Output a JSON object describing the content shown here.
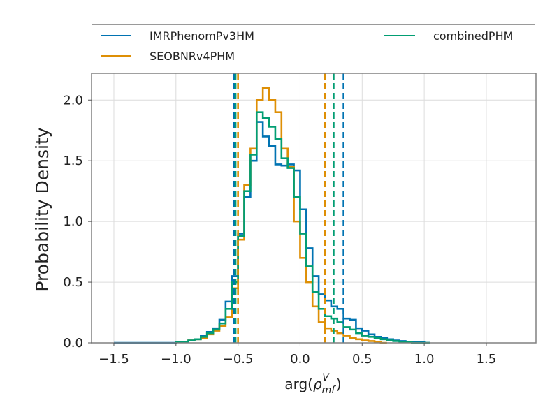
{
  "chart_data": {
    "type": "histogram",
    "xlabel": "arg(ρ_mf^V)",
    "ylabel": "Probability Density",
    "xlim": [
      -1.68,
      1.9
    ],
    "ylim": [
      0,
      2.22
    ],
    "xticks": [
      -1.5,
      -1.0,
      -0.5,
      0.0,
      0.5,
      1.0,
      1.5
    ],
    "xtick_labels": [
      "−1.5",
      "−1.0",
      "−0.5",
      "0.0",
      "0.5",
      "1.0",
      "1.5"
    ],
    "yticks": [
      0.0,
      0.5,
      1.0,
      1.5,
      2.0
    ],
    "ytick_labels": [
      "0.0",
      "0.5",
      "1.0",
      "1.5",
      "2.0"
    ],
    "grid": true,
    "legend_location": "above",
    "legend_columns": 2,
    "bin_width": 0.05,
    "series": [
      {
        "name": "IMRPhenomPv3HM",
        "color": "#0173b2",
        "bins": [
          [
            -1.5,
            0.0
          ],
          [
            -1.0,
            0.01
          ],
          [
            -0.95,
            0.01
          ],
          [
            -0.9,
            0.02
          ],
          [
            -0.85,
            0.03
          ],
          [
            -0.8,
            0.06
          ],
          [
            -0.75,
            0.09
          ],
          [
            -0.7,
            0.12
          ],
          [
            -0.65,
            0.19
          ],
          [
            -0.6,
            0.34
          ],
          [
            -0.55,
            0.55
          ],
          [
            -0.5,
            0.9
          ],
          [
            -0.45,
            1.2
          ],
          [
            -0.4,
            1.5
          ],
          [
            -0.35,
            1.82
          ],
          [
            -0.3,
            1.7
          ],
          [
            -0.25,
            1.62
          ],
          [
            -0.2,
            1.47
          ],
          [
            -0.15,
            1.46
          ],
          [
            -0.1,
            1.47
          ],
          [
            -0.05,
            1.42
          ],
          [
            0.0,
            1.1
          ],
          [
            0.05,
            0.78
          ],
          [
            0.1,
            0.55
          ],
          [
            0.15,
            0.4
          ],
          [
            0.2,
            0.35
          ],
          [
            0.25,
            0.3
          ],
          [
            0.3,
            0.28
          ],
          [
            0.35,
            0.2
          ],
          [
            0.4,
            0.19
          ],
          [
            0.45,
            0.12
          ],
          [
            0.5,
            0.1
          ],
          [
            0.55,
            0.07
          ],
          [
            0.6,
            0.05
          ],
          [
            0.65,
            0.04
          ],
          [
            0.7,
            0.03
          ],
          [
            0.75,
            0.02
          ],
          [
            0.8,
            0.015
          ],
          [
            0.85,
            0.01
          ],
          [
            0.9,
            0.01
          ],
          [
            0.95,
            0.01
          ],
          [
            1.0,
            0.0
          ]
        ],
        "interval": [
          -0.53,
          0.35
        ]
      },
      {
        "name": "SEOBNRv4PHM",
        "color": "#de8f05",
        "bins": [
          [
            -1.0,
            0.01
          ],
          [
            -0.95,
            0.01
          ],
          [
            -0.9,
            0.02
          ],
          [
            -0.85,
            0.03
          ],
          [
            -0.8,
            0.04
          ],
          [
            -0.75,
            0.07
          ],
          [
            -0.7,
            0.1
          ],
          [
            -0.65,
            0.14
          ],
          [
            -0.6,
            0.21
          ],
          [
            -0.55,
            0.45
          ],
          [
            -0.5,
            0.85
          ],
          [
            -0.45,
            1.3
          ],
          [
            -0.4,
            1.6
          ],
          [
            -0.35,
            2.0
          ],
          [
            -0.3,
            2.1
          ],
          [
            -0.25,
            2.0
          ],
          [
            -0.2,
            1.9
          ],
          [
            -0.15,
            1.6
          ],
          [
            -0.1,
            1.45
          ],
          [
            -0.05,
            1.0
          ],
          [
            0.0,
            0.7
          ],
          [
            0.05,
            0.5
          ],
          [
            0.1,
            0.3
          ],
          [
            0.15,
            0.17
          ],
          [
            0.2,
            0.12
          ],
          [
            0.25,
            0.1
          ],
          [
            0.3,
            0.08
          ],
          [
            0.35,
            0.06
          ],
          [
            0.4,
            0.04
          ],
          [
            0.45,
            0.03
          ],
          [
            0.5,
            0.02
          ],
          [
            0.55,
            0.015
          ],
          [
            0.6,
            0.01
          ],
          [
            0.65,
            0.0
          ]
        ],
        "interval": [
          -0.5,
          0.2
        ]
      },
      {
        "name": "combinedPHM",
        "color": "#029e73",
        "bins": [
          [
            -1.0,
            0.01
          ],
          [
            -0.95,
            0.01
          ],
          [
            -0.9,
            0.02
          ],
          [
            -0.85,
            0.03
          ],
          [
            -0.8,
            0.05
          ],
          [
            -0.75,
            0.08
          ],
          [
            -0.7,
            0.11
          ],
          [
            -0.65,
            0.16
          ],
          [
            -0.6,
            0.28
          ],
          [
            -0.55,
            0.5
          ],
          [
            -0.5,
            0.88
          ],
          [
            -0.45,
            1.25
          ],
          [
            -0.4,
            1.55
          ],
          [
            -0.35,
            1.9
          ],
          [
            -0.3,
            1.85
          ],
          [
            -0.25,
            1.78
          ],
          [
            -0.2,
            1.68
          ],
          [
            -0.15,
            1.52
          ],
          [
            -0.1,
            1.44
          ],
          [
            -0.05,
            1.2
          ],
          [
            0.0,
            0.9
          ],
          [
            0.05,
            0.63
          ],
          [
            0.1,
            0.42
          ],
          [
            0.15,
            0.28
          ],
          [
            0.2,
            0.22
          ],
          [
            0.25,
            0.2
          ],
          [
            0.3,
            0.17
          ],
          [
            0.35,
            0.13
          ],
          [
            0.4,
            0.11
          ],
          [
            0.45,
            0.08
          ],
          [
            0.5,
            0.06
          ],
          [
            0.55,
            0.05
          ],
          [
            0.6,
            0.04
          ],
          [
            0.65,
            0.03
          ],
          [
            0.7,
            0.02
          ],
          [
            0.75,
            0.015
          ],
          [
            0.8,
            0.01
          ],
          [
            0.85,
            0.01
          ],
          [
            1.0,
            0.0
          ]
        ],
        "interval": [
          -0.52,
          0.27
        ]
      }
    ]
  }
}
